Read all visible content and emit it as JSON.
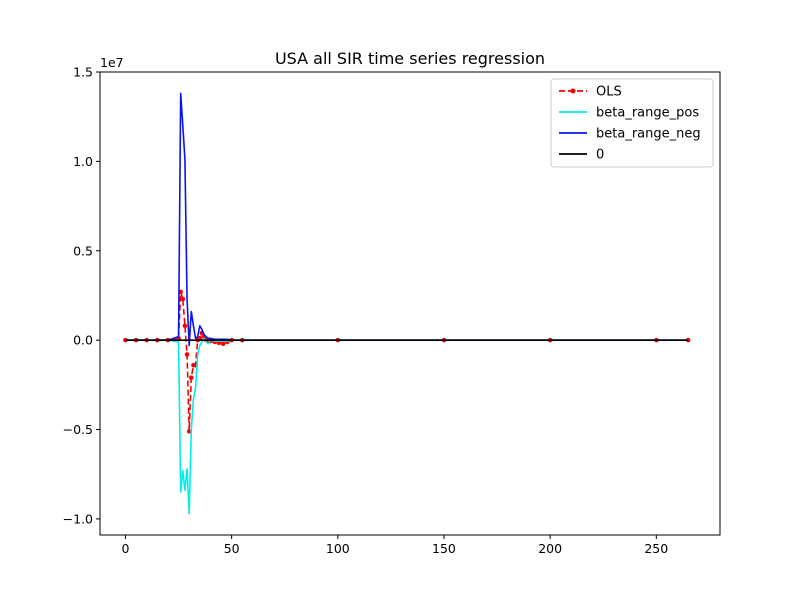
{
  "chart_data": {
    "type": "line",
    "title": "USA all SIR time series regression",
    "xlabel": "",
    "ylabel": "",
    "y_scale_label": "1e7",
    "xlim": [
      -12,
      280
    ],
    "ylim": [
      -10.9,
      15.0
    ],
    "x_ticks": [
      0,
      50,
      100,
      150,
      200,
      250
    ],
    "x_tick_labels": [
      "0",
      "50",
      "100",
      "150",
      "200",
      "250"
    ],
    "y_ticks": [
      -10,
      -5,
      0,
      5,
      10,
      15
    ],
    "y_tick_labels": [
      "−1.0",
      "−0.5",
      "0.0",
      "0.5",
      "1.0",
      "1.5"
    ],
    "grid": false,
    "legend_position": "top-right",
    "series": [
      {
        "name": "OLS",
        "color": "#ff0000",
        "style": "dashed-dot-marker",
        "x": [
          0,
          5,
          10,
          15,
          20,
          25,
          26,
          27,
          28,
          29,
          30,
          31,
          32,
          33,
          34,
          35,
          36,
          37,
          38,
          39,
          40,
          42,
          44,
          46,
          48,
          50,
          55,
          100,
          150,
          200,
          250,
          265
        ],
        "y": [
          0,
          0,
          0,
          0,
          0,
          0.1,
          2.7,
          2.3,
          0.8,
          -0.8,
          -5.1,
          -2.1,
          -1.4,
          -1.4,
          0.0,
          0.1,
          0.4,
          0.2,
          0.0,
          -0.05,
          -0.05,
          -0.1,
          -0.15,
          -0.2,
          -0.1,
          0,
          0,
          0,
          0,
          0,
          0,
          0
        ]
      },
      {
        "name": "beta_range_pos",
        "color": "#00eeee",
        "style": "solid",
        "x": [
          0,
          5,
          10,
          15,
          20,
          25,
          26,
          27,
          28,
          29,
          30,
          31,
          32,
          33,
          34,
          35,
          36,
          37,
          38,
          39,
          40,
          42,
          44,
          46,
          48,
          50,
          55,
          100,
          150,
          200,
          250,
          265
        ],
        "y": [
          0,
          0,
          0,
          0,
          0,
          -0.1,
          -8.5,
          -7.3,
          -8.4,
          -7.2,
          -9.7,
          -5.0,
          -3.3,
          -2.7,
          -0.8,
          -0.3,
          -0.1,
          0.1,
          -0.1,
          -0.2,
          0.0,
          -0.05,
          -0.05,
          -0.05,
          -0.05,
          0,
          0,
          0,
          0,
          0,
          0,
          0
        ]
      },
      {
        "name": "beta_range_neg",
        "color": "#0a14ee",
        "style": "solid",
        "x": [
          0,
          5,
          10,
          15,
          20,
          25,
          26,
          27,
          28,
          29,
          30,
          31,
          32,
          33,
          34,
          35,
          36,
          37,
          38,
          39,
          40,
          42,
          44,
          46,
          48,
          50,
          55,
          100,
          150,
          200,
          250,
          265
        ],
        "y": [
          0,
          0,
          0,
          0,
          0,
          0.2,
          13.8,
          12.0,
          10.1,
          2.3,
          -0.3,
          1.6,
          0.8,
          0.1,
          0.2,
          0.8,
          0.6,
          0.3,
          0.2,
          0.1,
          0.1,
          0.05,
          0.05,
          0.05,
          0.05,
          0,
          0,
          0,
          0,
          0,
          0,
          0
        ]
      },
      {
        "name": "0",
        "color": "#000000",
        "style": "solid",
        "x": [
          0,
          265
        ],
        "y": [
          0,
          0
        ]
      }
    ]
  }
}
